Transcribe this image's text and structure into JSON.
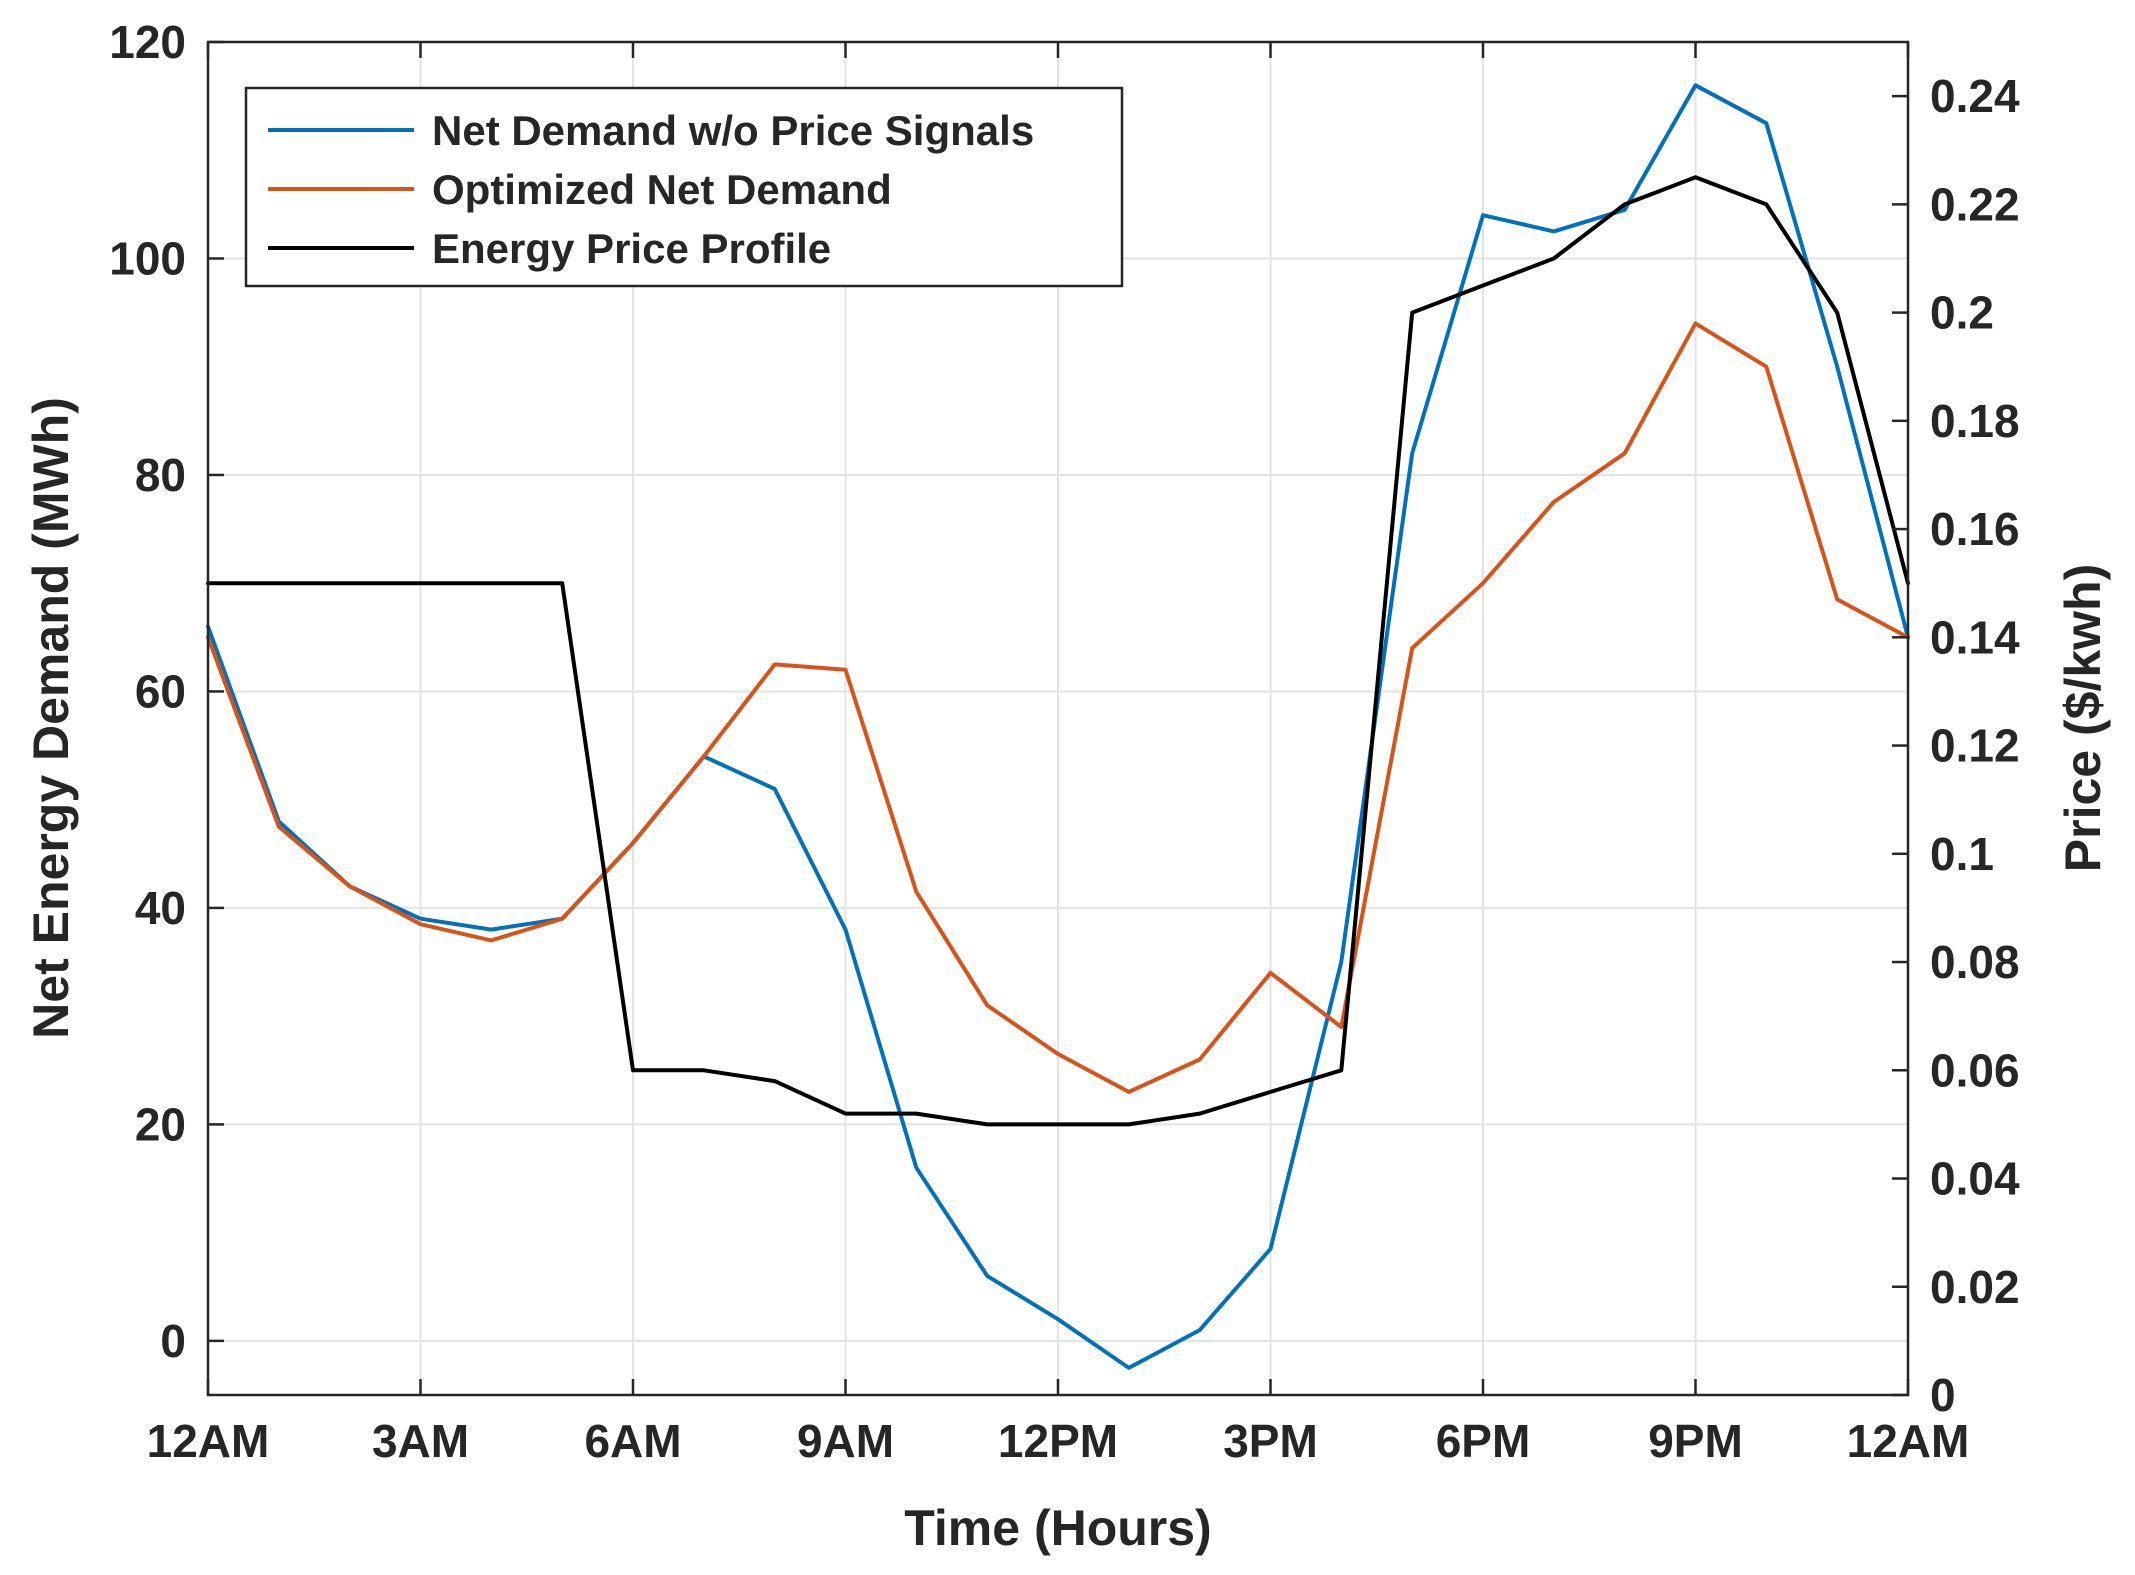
{
  "chart_data": {
    "type": "line",
    "xlabel": "Time (Hours)",
    "ylabel_left": "Net Energy Demand (MWh)",
    "ylabel_right": "Price ($/kwh)",
    "x_tick_labels": [
      "12AM",
      "3AM",
      "6AM",
      "9AM",
      "12PM",
      "3PM",
      "6PM",
      "9PM",
      "12AM"
    ],
    "x_tick_values": [
      0,
      3,
      6,
      9,
      12,
      15,
      18,
      21,
      24
    ],
    "xlim": [
      0,
      24
    ],
    "ylim_left": [
      -5,
      120
    ],
    "ylim_right": [
      0,
      0.25
    ],
    "y_ticks_left": [
      0,
      20,
      40,
      60,
      80,
      100,
      120
    ],
    "y_ticks_right": [
      0,
      0.02,
      0.04,
      0.06,
      0.08,
      0.1,
      0.12,
      0.14,
      0.16,
      0.18,
      0.2,
      0.22,
      0.24
    ],
    "y_tick_labels_right": [
      "0",
      "0.02",
      "0.04",
      "0.06",
      "0.08",
      "0.1",
      "0.12",
      "0.14",
      "0.16",
      "0.18",
      "0.2",
      "0.22",
      "0.24"
    ],
    "grid": true,
    "legend_position": "top-left",
    "series": [
      {
        "name": "Net Demand w/o Price Signals",
        "axis": "left",
        "color": "#0072BD",
        "x": [
          0,
          1,
          2,
          3,
          4,
          5,
          6,
          7,
          8,
          9,
          10,
          11,
          12,
          13,
          14,
          15,
          16,
          17,
          18,
          19,
          20,
          21,
          22,
          23,
          24
        ],
        "values": [
          66,
          48,
          42,
          39,
          38,
          39,
          46,
          54,
          51,
          38,
          16,
          6,
          2,
          -2.5,
          1,
          8.5,
          35,
          82,
          104,
          102.5,
          104.5,
          116,
          112.5,
          90,
          65
        ]
      },
      {
        "name": "Optimized Net Demand",
        "axis": "left",
        "color": "#D95319",
        "x": [
          0,
          1,
          2,
          3,
          4,
          5,
          6,
          7,
          8,
          9,
          10,
          11,
          12,
          13,
          14,
          15,
          16,
          17,
          18,
          19,
          20,
          21,
          22,
          23,
          24
        ],
        "values": [
          65,
          47.5,
          42,
          38.5,
          37,
          39,
          46,
          54,
          62.5,
          62,
          41.5,
          31,
          26.5,
          23,
          26,
          34,
          29,
          64,
          70,
          77.5,
          82,
          94,
          90,
          68.5,
          65
        ]
      },
      {
        "name": "Energy Price Profile",
        "axis": "right",
        "color": "#000000",
        "x": [
          0,
          1,
          2,
          3,
          4,
          5,
          6,
          7,
          8,
          9,
          10,
          11,
          12,
          13,
          14,
          15,
          16,
          17,
          18,
          19,
          20,
          21,
          22,
          23,
          24
        ],
        "values": [
          0.15,
          0.15,
          0.15,
          0.15,
          0.15,
          0.15,
          0.06,
          0.06,
          0.058,
          0.052,
          0.052,
          0.05,
          0.05,
          0.05,
          0.052,
          0.056,
          0.06,
          0.2,
          0.205,
          0.21,
          0.22,
          0.225,
          0.22,
          0.2,
          0.15
        ]
      }
    ]
  }
}
